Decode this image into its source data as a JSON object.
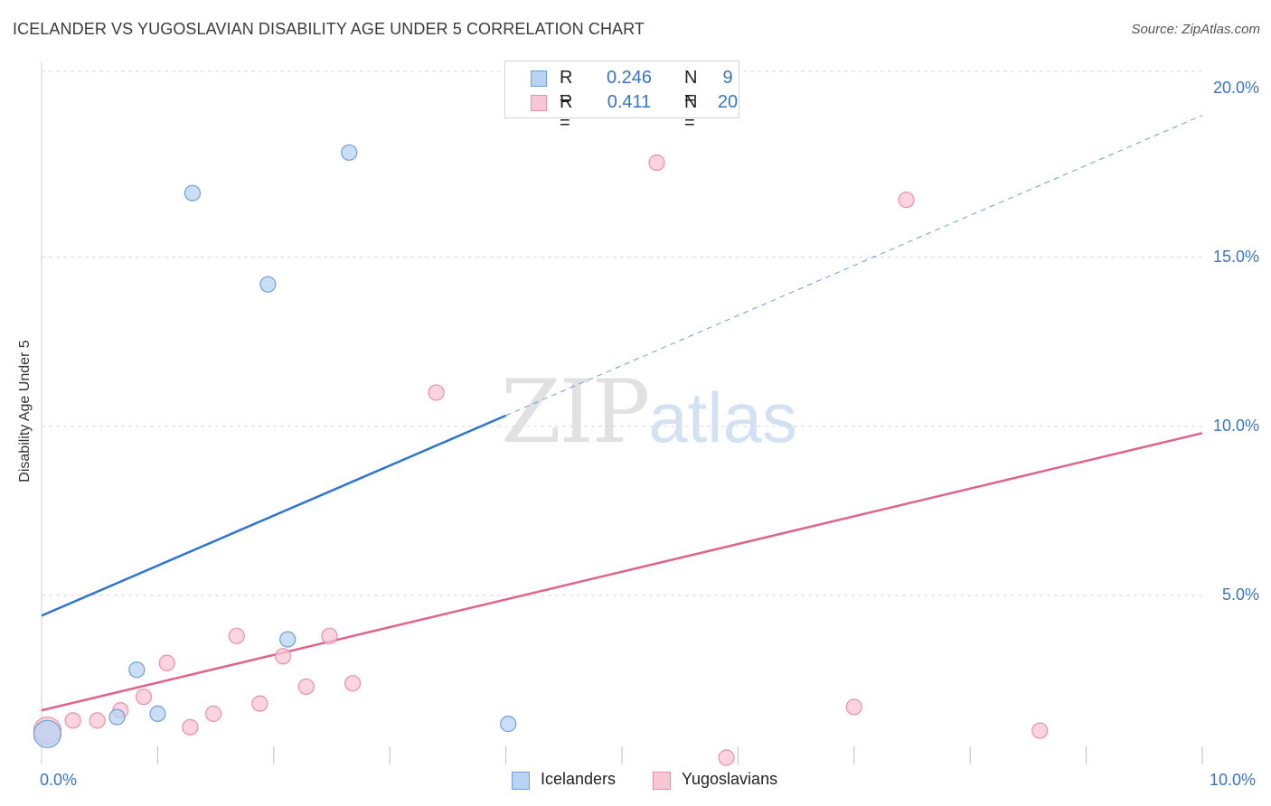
{
  "header": {
    "title": "ICELANDER VS YUGOSLAVIAN DISABILITY AGE UNDER 5 CORRELATION CHART",
    "source": "Source: ZipAtlas.com"
  },
  "watermark": {
    "zip": "ZIP",
    "atlas": "atlas"
  },
  "legend_top": {
    "rows": [
      {
        "r_label": "R =",
        "r_value": "0.246",
        "n_label": "N =",
        "n_value": "9"
      },
      {
        "r_label": "R =",
        "r_value": "0.411",
        "n_label": "N =",
        "n_value": "20"
      }
    ]
  },
  "legend_bottom": {
    "items": [
      "Icelanders",
      "Yugoslavians"
    ]
  },
  "colors": {
    "icelanders_fill": "#b8d3f3",
    "icelanders_stroke": "#6f9fd8",
    "icelanders_line": "#2f74d0",
    "yugoslavians_fill": "#f9c6d4",
    "yugoslavians_stroke": "#e890aa",
    "yugoslavians_line": "#e0638e",
    "axis_text": "#3a74c6",
    "grid": "#d8d8d8"
  },
  "chart_data": {
    "type": "scatter",
    "title": "ICELANDER VS YUGOSLAVIAN DISABILITY AGE UNDER 5 CORRELATION CHART",
    "xlabel": "",
    "ylabel": "Disability Age Under 5",
    "xlim": [
      0,
      10
    ],
    "ylim": [
      0,
      20.5
    ],
    "x_tick_labels": [
      "0.0%",
      "10.0%"
    ],
    "y_ticks": [
      5,
      10,
      15,
      20
    ],
    "y_tick_labels": [
      "5.0%",
      "10.0%",
      "15.0%",
      "20.0%"
    ],
    "series": [
      {
        "name": "Icelanders",
        "points": [
          {
            "x": 0.05,
            "y": 0.9,
            "s": "large"
          },
          {
            "x": 0.65,
            "y": 1.4
          },
          {
            "x": 0.82,
            "y": 2.8
          },
          {
            "x": 1.0,
            "y": 1.5
          },
          {
            "x": 1.3,
            "y": 16.9
          },
          {
            "x": 1.95,
            "y": 14.2
          },
          {
            "x": 2.12,
            "y": 3.7
          },
          {
            "x": 2.65,
            "y": 18.1
          },
          {
            "x": 4.02,
            "y": 1.2
          }
        ],
        "trend": {
          "x0": 0,
          "y0": 4.4,
          "x1": 10,
          "y1": 19.2,
          "solid_until_x": 4.0
        }
      },
      {
        "name": "Yugoslavians",
        "points": [
          {
            "x": 0.05,
            "y": 1.0,
            "s": "large"
          },
          {
            "x": 0.27,
            "y": 1.3
          },
          {
            "x": 0.48,
            "y": 1.3
          },
          {
            "x": 0.68,
            "y": 1.6
          },
          {
            "x": 0.88,
            "y": 2.0
          },
          {
            "x": 1.08,
            "y": 3.0
          },
          {
            "x": 1.28,
            "y": 1.1
          },
          {
            "x": 1.48,
            "y": 1.5
          },
          {
            "x": 1.68,
            "y": 3.8
          },
          {
            "x": 1.88,
            "y": 1.8
          },
          {
            "x": 2.08,
            "y": 3.2
          },
          {
            "x": 2.28,
            "y": 2.3
          },
          {
            "x": 2.48,
            "y": 3.8
          },
          {
            "x": 2.68,
            "y": 2.4
          },
          {
            "x": 3.4,
            "y": 11.0
          },
          {
            "x": 5.3,
            "y": 17.8
          },
          {
            "x": 5.9,
            "y": 0.2
          },
          {
            "x": 7.0,
            "y": 1.7
          },
          {
            "x": 7.45,
            "y": 16.7
          },
          {
            "x": 8.6,
            "y": 1.0
          }
        ],
        "trend": {
          "x0": 0,
          "y0": 1.6,
          "x1": 10,
          "y1": 9.8
        }
      }
    ]
  }
}
